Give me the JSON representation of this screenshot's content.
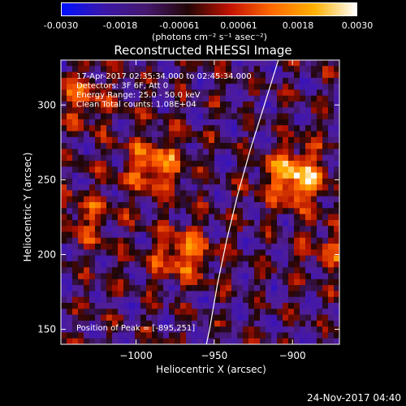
{
  "colorbar": {
    "ticks": [
      "-0.0030",
      "-0.0018",
      "-0.00061",
      "0.00061",
      "0.0018",
      "0.0030"
    ],
    "units": "(photons cm⁻² s⁻¹ asec⁻²)",
    "colors": [
      "#0010ff",
      "#3a17a8",
      "#45186e",
      "#220606",
      "#c41200",
      "#ff6a00",
      "#ffb000",
      "#ffffff"
    ]
  },
  "chart_data": {
    "type": "heatmap",
    "title": "Reconstructed RHESSI Image",
    "xlabel": "Heliocentric X (arcsec)",
    "ylabel": "Heliocentric Y (arcsec)",
    "xlim": [
      -1048,
      -870
    ],
    "ylim": [
      140,
      330
    ],
    "xticks": [
      -1000,
      -950,
      -900
    ],
    "yticks": [
      150,
      200,
      250,
      300
    ],
    "xtick_labels": [
      "−1000",
      "−950",
      "−900"
    ],
    "ytick_labels": [
      "150",
      "200",
      "250",
      "300"
    ],
    "color_range": [
      -0.003,
      0.003
    ],
    "limb_curve": [
      [
        -909,
        330
      ],
      [
        -918,
        300
      ],
      [
        -927,
        270
      ],
      [
        -935,
        240
      ],
      [
        -942,
        210
      ],
      [
        -948,
        180
      ],
      [
        -953,
        150
      ],
      [
        -955,
        140
      ]
    ],
    "sources": [
      {
        "x": -898,
        "y": 252,
        "peak": 0.003
      },
      {
        "x": -988,
        "y": 260,
        "peak": 0.0022
      },
      {
        "x": -970,
        "y": 200,
        "peak": 0.002
      },
      {
        "x": -1035,
        "y": 305,
        "peak": 0.0015
      },
      {
        "x": -1030,
        "y": 225,
        "peak": 0.0012
      },
      {
        "x": -875,
        "y": 205,
        "peak": 0.0012
      }
    ],
    "annotations": [
      "17-Apr-2017 02:35:34.000 to 02:45:34.000",
      "Detectors: 3F 6F, Att 0",
      "Energy Range: 25.0 - 50.0 keV",
      "Clean    Total counts: 1.08E+04"
    ],
    "peak_text": "Position of Peak = [-895,251]"
  },
  "footer": {
    "timestamp": "24-Nov-2017 04:40"
  }
}
